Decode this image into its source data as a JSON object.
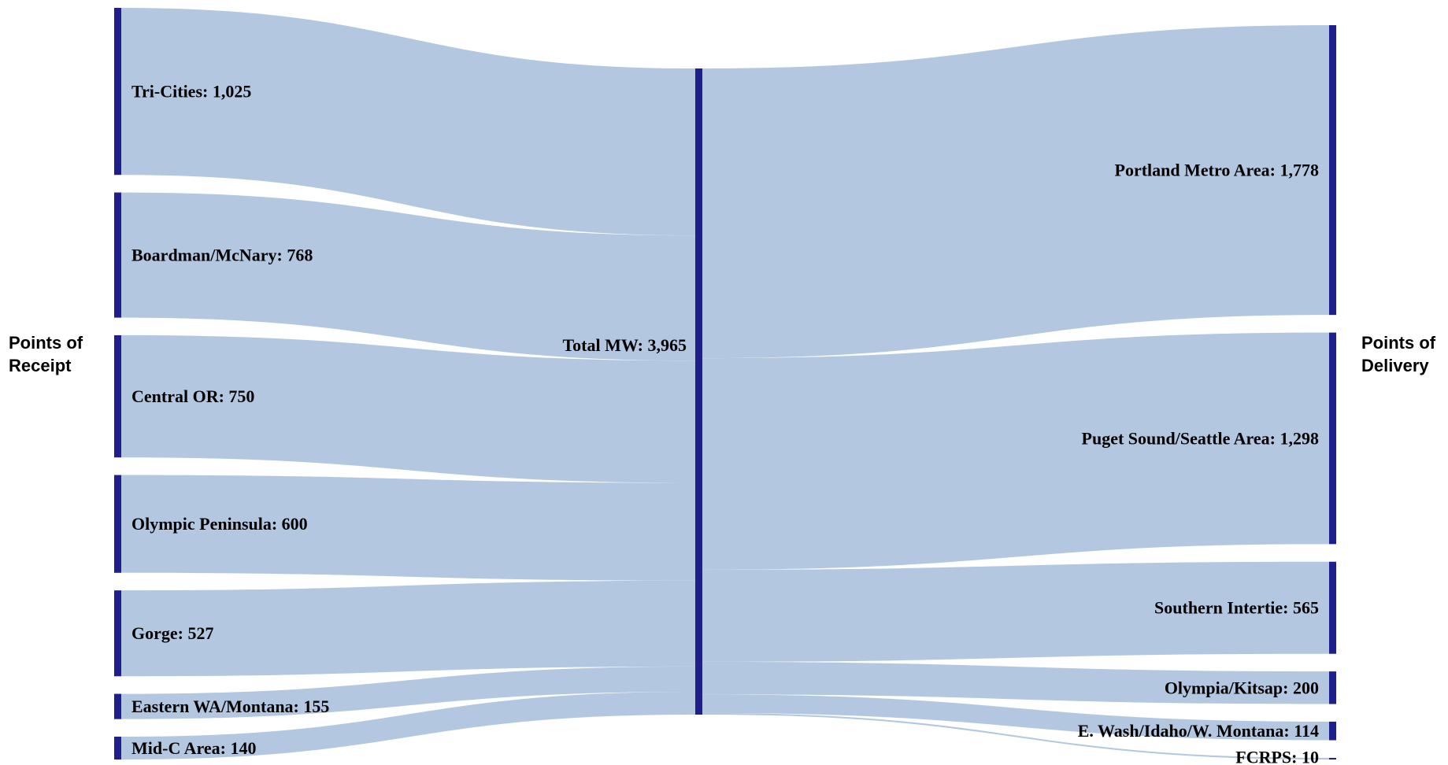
{
  "side_labels": {
    "left": "Points of\nReceipt",
    "right": "Points of\nDelivery"
  },
  "colors": {
    "node": "#1f1f8c",
    "link": "#b3c8e0"
  },
  "chart_data": {
    "type": "sankey",
    "units": "MW",
    "title": "",
    "center": {
      "name": "Total MW",
      "value": 3965,
      "label": "Total MW: 3,965"
    },
    "sources": [
      {
        "name": "Tri-Cities",
        "value": 1025,
        "label": "Tri-Cities: 1,025"
      },
      {
        "name": "Boardman/McNary",
        "value": 768,
        "label": "Boardman/McNary: 768"
      },
      {
        "name": "Central OR",
        "value": 750,
        "label": "Central OR: 750"
      },
      {
        "name": "Olympic Peninsula",
        "value": 600,
        "label": "Olympic Peninsula: 600"
      },
      {
        "name": "Gorge",
        "value": 527,
        "label": "Gorge: 527"
      },
      {
        "name": "Eastern WA/Montana",
        "value": 155,
        "label": "Eastern WA/Montana: 155"
      },
      {
        "name": "Mid-C Area",
        "value": 140,
        "label": "Mid-C Area: 140"
      }
    ],
    "targets": [
      {
        "name": "Portland Metro Area",
        "value": 1778,
        "label": "Portland Metro Area: 1,778"
      },
      {
        "name": "Puget Sound/Seattle Area",
        "value": 1298,
        "label": "Puget Sound/Seattle Area: 1,298"
      },
      {
        "name": "Southern Intertie",
        "value": 565,
        "label": "Southern Intertie: 565"
      },
      {
        "name": "Olympia/Kitsap",
        "value": 200,
        "label": "Olympia/Kitsap: 200"
      },
      {
        "name": "E. Wash/Idaho/W. Montana",
        "value": 114,
        "label": "E. Wash/Idaho/W. Montana: 114"
      },
      {
        "name": "FCRPS",
        "value": 10,
        "label": "FCRPS: 10"
      }
    ]
  }
}
